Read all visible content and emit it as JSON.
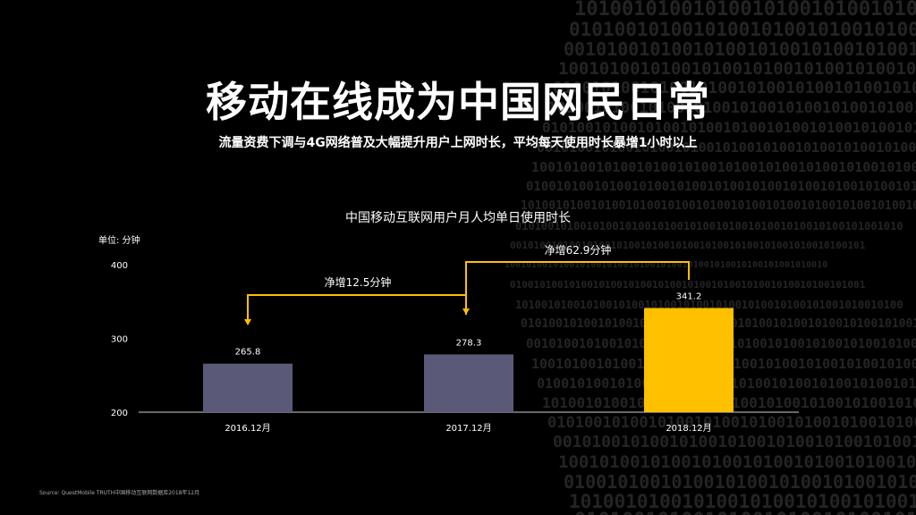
{
  "header": {
    "title": "移动在线成为中国网民日常",
    "subtitle": "流量资费下调与4G网络普及大幅提升用户上网时长，平均每天使用时长暴增1小时以上"
  },
  "chart_data": {
    "type": "bar",
    "title": "中国移动互联网用户月人均单日使用时长",
    "unit_label": "单位: 分钟",
    "categories": [
      "2016.12月",
      "2017.12月",
      "2018.12月"
    ],
    "values": [
      265.8,
      278.3,
      341.2
    ],
    "value_labels": [
      "265.8",
      "278.3",
      "341.2"
    ],
    "yticks": [
      "200",
      "300",
      "400"
    ],
    "ylim": [
      200,
      400
    ],
    "grid": false,
    "colors": [
      "#5a5a78",
      "#5a5a78",
      "#ffc000"
    ],
    "annotations": [
      {
        "text": "净增12.5分钟",
        "from": 1,
        "to": 0
      },
      {
        "text": "净增62.9分钟",
        "from": 2,
        "to": 1
      }
    ],
    "annotation_color": "#ffc000"
  },
  "footer": {
    "source": "Source: QuestMobile TRUTH中国移动互联网数据库2018年12月"
  }
}
